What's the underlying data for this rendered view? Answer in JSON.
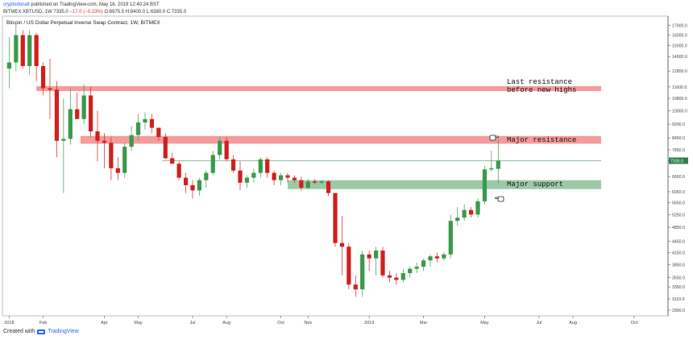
{
  "header": {
    "user": "cryptodonalt",
    "published": "published on TradingView.com, May 18, 2019 12:40:24 BST",
    "symbol": "BITMEX:XBTUSD, 1W",
    "price": "7335.0",
    "change": "−17.0 (−0.23%)",
    "ohlc": "O:6975.5 H:8400.0 L:6380.0 C:7335.0"
  },
  "footer": {
    "created_with": "Created with",
    "brand": "TradingView"
  },
  "colors": {
    "up": "#3a9a4a",
    "down": "#d0201c",
    "resistance": "#f28a8a",
    "support": "#8cc196",
    "price_tag": "#2e7d4a"
  },
  "chart_data": {
    "type": "candlestick",
    "title": "Bitcoin / US Dollar Perpetual Inverse Swap Contract, 1W, BITMEX",
    "y_scale": "log",
    "ylim": [
      2800,
      18000
    ],
    "y_ticks": [
      "17000.0",
      "16000.0",
      "15000.0",
      "14000.0",
      "12800.0",
      "11600.0",
      "10800.0",
      "10000.0",
      "9200.0",
      "8450.0",
      "7850.0",
      "7335.0",
      "6650.0",
      "6050.0",
      "5650.0",
      "5250.0",
      "4850.0",
      "4450.0",
      "4150.0",
      "3850.0",
      "3550.0",
      "3350.0",
      "3110.0",
      "2900.0"
    ],
    "x_ticks": [
      {
        "label": "2018",
        "week": 0
      },
      {
        "label": "Feb",
        "week": 5
      },
      {
        "label": "Apr",
        "week": 14
      },
      {
        "label": "May",
        "week": 19
      },
      {
        "label": "Jul",
        "week": 27
      },
      {
        "label": "Aug",
        "week": 32
      },
      {
        "label": "Oct",
        "week": 40
      },
      {
        "label": "Nov",
        "week": 44
      },
      {
        "label": "2019",
        "week": 53
      },
      {
        "label": "Mar",
        "week": 61
      },
      {
        "label": "May",
        "week": 70
      },
      {
        "label": "Jul",
        "week": 78
      },
      {
        "label": "Aug",
        "week": 83
      },
      {
        "label": "Oct",
        "week": 92
      }
    ],
    "x_range_weeks": [
      -1,
      97
    ],
    "last_price": 7335.0,
    "candles": [
      [
        13000,
        15800,
        11500,
        13500
      ],
      [
        13500,
        17200,
        12800,
        16000
      ],
      [
        16000,
        16500,
        13000,
        13200
      ],
      [
        13200,
        16500,
        12500,
        16000
      ],
      [
        16000,
        16200,
        12000,
        13200
      ],
      [
        13200,
        13500,
        11000,
        11500
      ],
      [
        11500,
        13800,
        9500,
        11400
      ],
      [
        11400,
        12000,
        7500,
        8300
      ],
      [
        8300,
        10800,
        6000,
        8400
      ],
      [
        8400,
        11500,
        8100,
        10100
      ],
      [
        10100,
        11200,
        9500,
        9500
      ],
      [
        9500,
        11800,
        9200,
        11000
      ],
      [
        11000,
        11600,
        8500,
        8800
      ],
      [
        8800,
        10000,
        7300,
        8300
      ],
      [
        8300,
        8700,
        7000,
        8200
      ],
      [
        8200,
        8500,
        6500,
        7000
      ],
      [
        7000,
        7500,
        6500,
        6800
      ],
      [
        6800,
        8200,
        6600,
        8000
      ],
      [
        8000,
        9100,
        7800,
        8600
      ],
      [
        8600,
        9800,
        8300,
        9300
      ],
      [
        9300,
        9900,
        8900,
        9500
      ],
      [
        9500,
        9800,
        8700,
        9000
      ],
      [
        9000,
        9000,
        8300,
        8500
      ],
      [
        8500,
        8700,
        7400,
        7450
      ],
      [
        7450,
        7700,
        7200,
        7200
      ],
      [
        7200,
        7300,
        6500,
        6600
      ],
      [
        6600,
        6800,
        6000,
        6300
      ],
      [
        6300,
        6500,
        5800,
        6100
      ],
      [
        6100,
        6600,
        5900,
        6500
      ],
      [
        6500,
        6900,
        6200,
        6800
      ],
      [
        6800,
        7800,
        6700,
        7600
      ],
      [
        7600,
        8500,
        7400,
        8300
      ],
      [
        8300,
        8500,
        7300,
        7400
      ],
      [
        7400,
        7600,
        6800,
        6900
      ],
      [
        6900,
        7300,
        6100,
        6400
      ],
      [
        6400,
        6700,
        6200,
        6600
      ],
      [
        6600,
        7000,
        6400,
        6800
      ],
      [
        6800,
        7500,
        6600,
        7400
      ],
      [
        7400,
        7500,
        6600,
        6800
      ],
      [
        6800,
        6900,
        6300,
        6500
      ],
      [
        6500,
        6800,
        6300,
        6700
      ],
      [
        6700,
        6800,
        6400,
        6600
      ],
      [
        6600,
        6700,
        6400,
        6500
      ],
      [
        6500,
        6650,
        6100,
        6200
      ],
      [
        6200,
        6550,
        6150,
        6450
      ],
      [
        6450,
        6550,
        6350,
        6400
      ],
      [
        6400,
        6500,
        6350,
        6450
      ],
      [
        6450,
        6500,
        5900,
        6000
      ],
      [
        6000,
        6000,
        4300,
        4400
      ],
      [
        4400,
        5200,
        3600,
        4300
      ],
      [
        4300,
        4400,
        3300,
        3400
      ],
      [
        3400,
        3600,
        3150,
        3300
      ],
      [
        3300,
        4200,
        3150,
        4100
      ],
      [
        4100,
        4200,
        3700,
        4000
      ],
      [
        4000,
        4300,
        3600,
        4200
      ],
      [
        4200,
        4300,
        3550,
        3600
      ],
      [
        3600,
        3700,
        3450,
        3550
      ],
      [
        3550,
        3650,
        3400,
        3500
      ],
      [
        3500,
        3750,
        3450,
        3650
      ],
      [
        3650,
        3800,
        3550,
        3750
      ],
      [
        3750,
        3900,
        3650,
        3800
      ],
      [
        3800,
        4000,
        3700,
        3950
      ],
      [
        3950,
        4100,
        3800,
        4050
      ],
      [
        4050,
        4150,
        3900,
        4000
      ],
      [
        4000,
        4150,
        3950,
        4100
      ],
      [
        4100,
        5250,
        4000,
        5050
      ],
      [
        5050,
        5500,
        4900,
        5150
      ],
      [
        5150,
        5600,
        5050,
        5400
      ],
      [
        5400,
        5500,
        5150,
        5250
      ],
      [
        5250,
        5800,
        5150,
        5700
      ],
      [
        5700,
        7100,
        5600,
        6950
      ],
      [
        6950,
        7800,
        6850,
        7000
      ],
      [
        6975.5,
        8400,
        6380,
        7335
      ]
    ],
    "zones": [
      {
        "label": "Last resistance before new highs",
        "low": 11300,
        "high": 11650,
        "role": "resistance"
      },
      {
        "label": "Major resistance",
        "low": 8150,
        "high": 8550,
        "role": "resistance"
      },
      {
        "label": "Major support",
        "low": 6150,
        "high": 6500,
        "role": "support"
      }
    ],
    "annotations": [
      "Last resistance\nbefore new highs",
      "Major resistance",
      "Major support"
    ]
  }
}
